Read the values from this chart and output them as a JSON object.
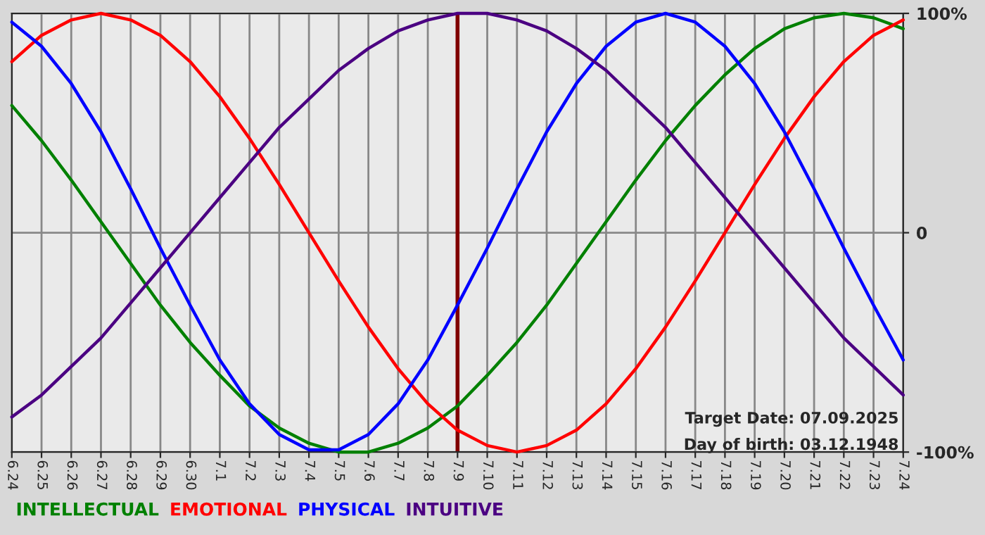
{
  "chart_data": {
    "type": "line",
    "categories": [
      "6.24",
      "6.25",
      "6.26",
      "6.27",
      "6.28",
      "6.29",
      "6.30",
      "7.1",
      "7.2",
      "7.3",
      "7.4",
      "7.5",
      "7.6",
      "7.7",
      "7.8",
      "7.9",
      "7.10",
      "7.11",
      "7.12",
      "7.13",
      "7.14",
      "7.15",
      "7.16",
      "7.17",
      "7.18",
      "7.19",
      "7.20",
      "7.21",
      "7.22",
      "7.23",
      "7.24"
    ],
    "series": [
      {
        "name": "INTELLECTUAL",
        "color": "#008000",
        "values": [
          58,
          42,
          24,
          5,
          -14,
          -33,
          -50,
          -65,
          -79,
          -89,
          -96,
          -100,
          -100,
          -96,
          -89,
          -79,
          -65,
          -50,
          -33,
          -14,
          5,
          24,
          42,
          58,
          72,
          84,
          93,
          98,
          100,
          98,
          93
        ]
      },
      {
        "name": "EMOTIONAL",
        "color": "#ff0000",
        "values": [
          78,
          90,
          97,
          100,
          97,
          90,
          78,
          62,
          43,
          22,
          0,
          -22,
          -43,
          -62,
          -78,
          -90,
          -97,
          -100,
          -97,
          -90,
          -78,
          -62,
          -43,
          -22,
          0,
          22,
          43,
          62,
          78,
          90,
          97
        ]
      },
      {
        "name": "PHYSICAL",
        "color": "#0000ff",
        "values": [
          96,
          85,
          68,
          46,
          20,
          -7,
          -33,
          -58,
          -78,
          -92,
          -99,
          -99,
          -92,
          -78,
          -58,
          -33,
          -7,
          20,
          46,
          68,
          85,
          96,
          100,
          96,
          85,
          68,
          46,
          20,
          -7,
          -33,
          -58
        ]
      },
      {
        "name": "INTUITIVE",
        "color": "#4b0082",
        "values": [
          -84,
          -74,
          -61,
          -48,
          -32,
          -16,
          0,
          16,
          32,
          48,
          61,
          74,
          84,
          92,
          97,
          100,
          100,
          97,
          92,
          84,
          74,
          61,
          48,
          32,
          16,
          0,
          -16,
          -32,
          -48,
          -61,
          -74
        ]
      }
    ],
    "ylim": [
      -100,
      100
    ],
    "yticks": [
      {
        "value": 100,
        "label": "100%"
      },
      0,
      {
        "value": -100,
        "label": "-100%"
      }
    ],
    "ref_lines": [
      {
        "axis": "x",
        "value": "7.9",
        "color": "#800000"
      }
    ],
    "annotations": [
      "Target Date: 07.09.2025",
      "Day of birth: 03.12.1948"
    ],
    "grid": true,
    "legend": "bottom",
    "line_style": "solid",
    "marker": "none"
  }
}
